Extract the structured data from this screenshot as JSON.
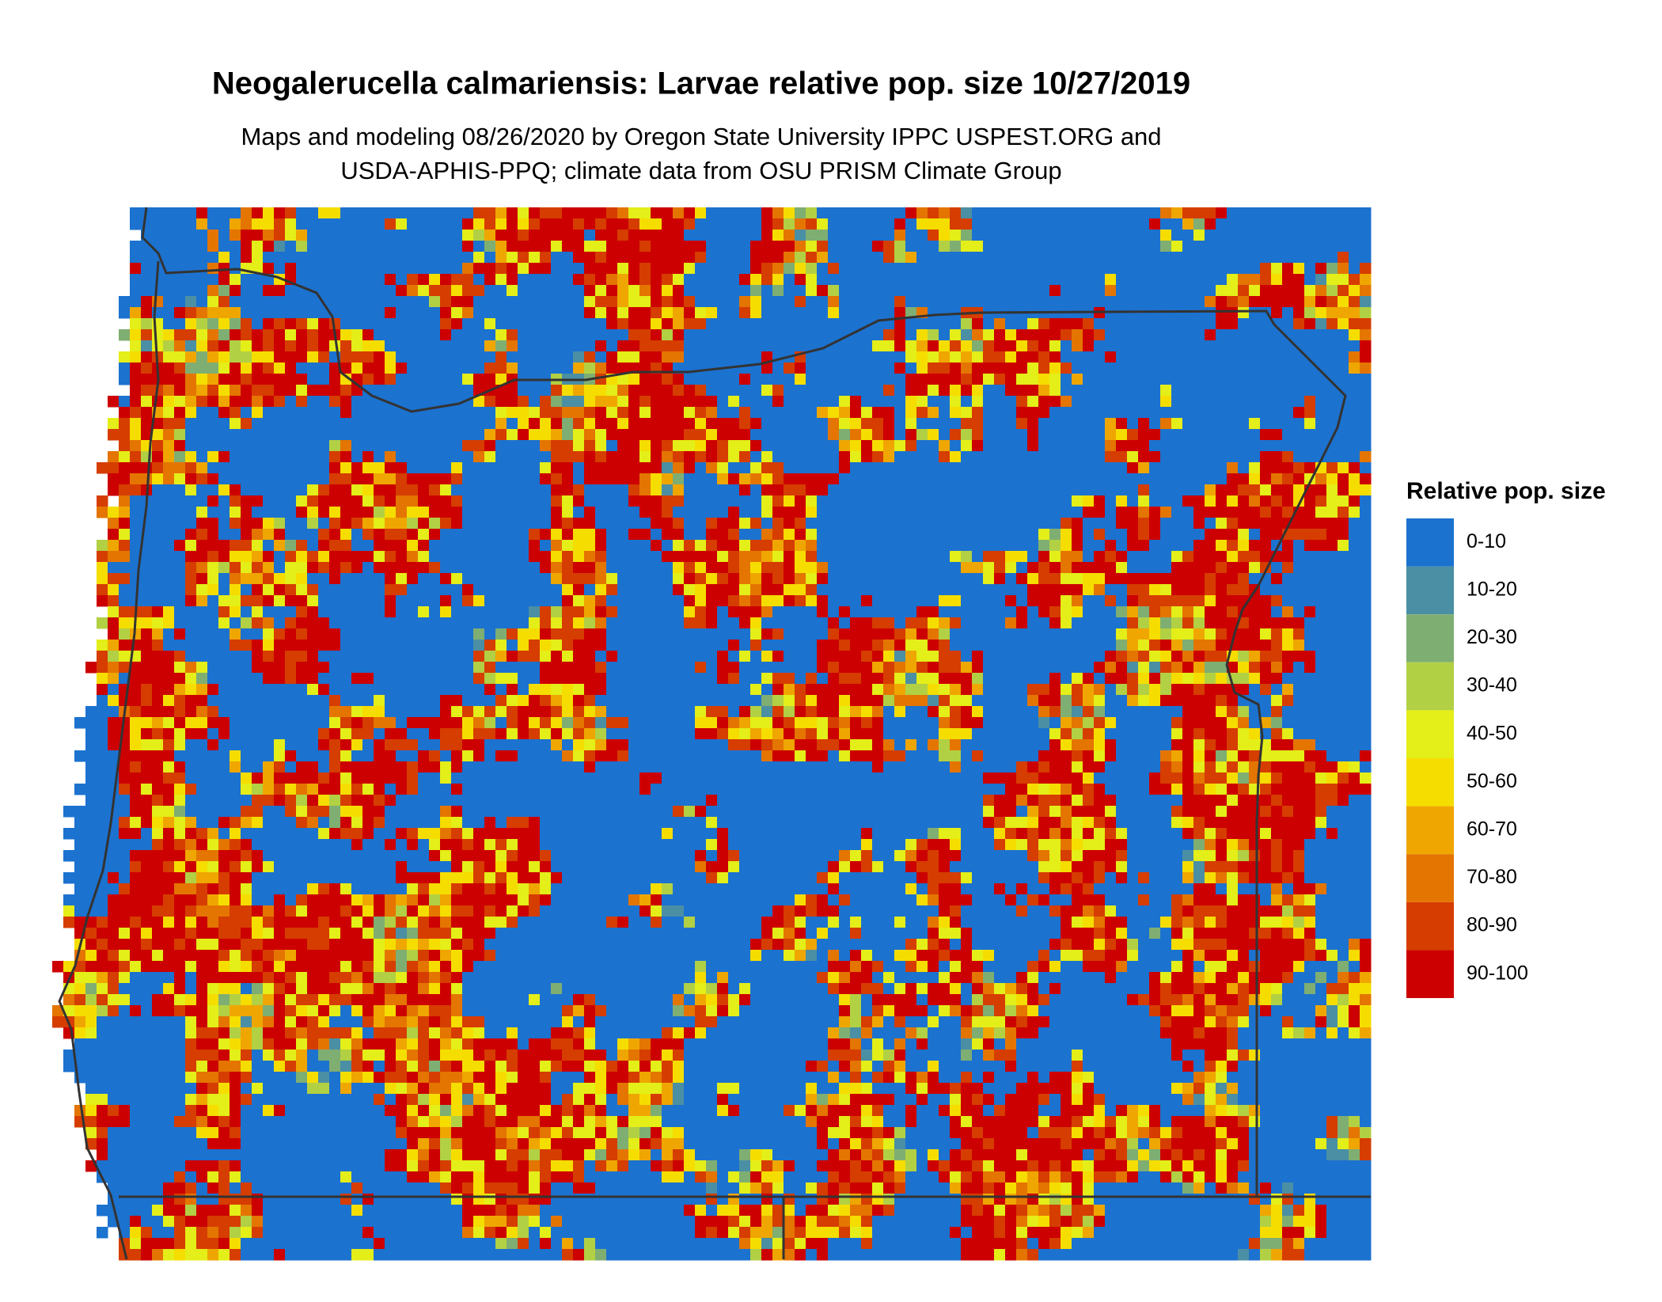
{
  "title": "Neogalerucella calmariensis: Larvae relative pop. size 10/27/2019",
  "subtitle": [
    "Maps and modeling 08/26/2020 by Oregon State University IPPC USPEST.ORG and",
    "USDA-APHIS-PPQ; climate data from OSU PRISM Climate Group"
  ],
  "legend": {
    "title": "Relative pop. size",
    "items": [
      {
        "label": "0-10",
        "color": "#1c72cf"
      },
      {
        "label": "10-20",
        "color": "#4a8fa4"
      },
      {
        "label": "20-30",
        "color": "#7fae72"
      },
      {
        "label": "30-40",
        "color": "#b2d043"
      },
      {
        "label": "40-50",
        "color": "#e4ee18"
      },
      {
        "label": "50-60",
        "color": "#f6dd00"
      },
      {
        "label": "60-70",
        "color": "#efa600"
      },
      {
        "label": "70-80",
        "color": "#e47500"
      },
      {
        "label": "80-90",
        "color": "#d63d00"
      },
      {
        "label": "90-100",
        "color": "#cc0000"
      }
    ]
  }
}
